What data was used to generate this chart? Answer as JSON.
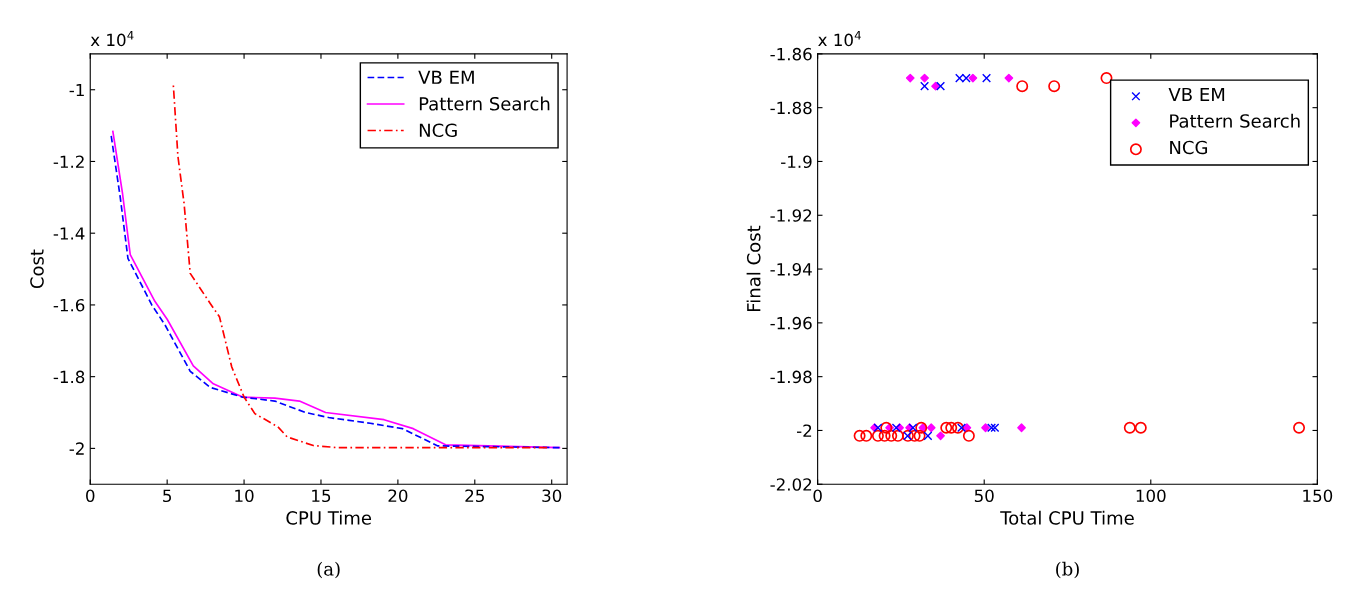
{
  "chart_data": [
    {
      "type": "line",
      "xlabel": "CPU Time",
      "ylabel": "Cost",
      "xlim": [
        0,
        31
      ],
      "ylim": [
        -2.1,
        -0.9
      ],
      "xticks": [
        0,
        5,
        10,
        15,
        20,
        25,
        30
      ],
      "yticks": [
        -2,
        -1.8,
        -1.6,
        -1.4,
        -1.2,
        -1
      ],
      "grid": false,
      "legend": "top right",
      "annotations": [
        "x 10$^{4}$",
        "(a)"
      ],
      "series": [
        {
          "name": "VB EM",
          "color": "#0000ff",
          "line_style": "dashed",
          "x": [
            1.35,
            1.95,
            2.45,
            4.0,
            4.85,
            6.5,
            7.8,
            9.9,
            12.0,
            14.0,
            15.5,
            18.2,
            20.3,
            22.6,
            30.5
          ],
          "values": [
            -1.125,
            -1.3,
            -1.47,
            -1.6,
            -1.655,
            -1.785,
            -1.83,
            -1.857,
            -1.868,
            -1.9,
            -1.914,
            -1.93,
            -1.945,
            -1.993,
            -1.998
          ]
        },
        {
          "name": "Pattern Search",
          "color": "#ff00ff",
          "line_style": "solid",
          "x": [
            1.47,
            2.1,
            2.6,
            4.2,
            5.0,
            6.7,
            8.0,
            9.9,
            12.0,
            13.6,
            15.3,
            19.1,
            21.0,
            23.1,
            30.5
          ],
          "values": [
            -1.116,
            -1.29,
            -1.46,
            -1.59,
            -1.64,
            -1.77,
            -1.82,
            -1.857,
            -1.86,
            -1.868,
            -1.9,
            -1.92,
            -1.945,
            -1.99,
            -1.998
          ]
        },
        {
          "name": "NCG",
          "color": "#ff0000",
          "line_style": "dashdot",
          "x": [
            5.4,
            5.7,
            6.1,
            6.5,
            7.8,
            8.4,
            9.2,
            10.0,
            10.7,
            12.2,
            12.8,
            14.5,
            16.1,
            29.7
          ],
          "values": [
            -0.986,
            -1.186,
            -1.317,
            -1.512,
            -1.596,
            -1.633,
            -1.773,
            -1.857,
            -1.903,
            -1.94,
            -1.968,
            -1.992,
            -1.998,
            -1.998
          ]
        }
      ]
    },
    {
      "type": "scatter",
      "xlabel": "Total CPU Time",
      "ylabel": "Final Cost",
      "xlim": [
        0,
        150
      ],
      "ylim": [
        -2.02,
        -1.86
      ],
      "xticks": [
        0,
        50,
        100,
        150
      ],
      "yticks": [
        -2.02,
        -2,
        -1.98,
        -1.96,
        -1.94,
        -1.92,
        -1.9,
        -1.88,
        -1.86
      ],
      "grid": false,
      "legend": "top right",
      "annotations": [
        "x 10$^{4}$",
        "(b)"
      ],
      "series": [
        {
          "name": "VB EM",
          "color": "#0000ff",
          "marker": "cross",
          "x": [
            32.1,
            36.9,
            42.6,
            44.6,
            50.7,
            18.1,
            23.6,
            28.6,
            43.2,
            52.2,
            53.2,
            27,
            33.1
          ],
          "values": [
            -1.872,
            -1.872,
            -1.869,
            -1.869,
            -1.869,
            -1.999,
            -1.999,
            -1.999,
            -1.999,
            -1.999,
            -1.999,
            -2.002,
            -2.002
          ]
        },
        {
          "name": "Pattern Search",
          "color": "#ff00ff",
          "marker": "diamond",
          "x": [
            27.8,
            32.1,
            35.4,
            46.6,
            57.4,
            17.1,
            21.6,
            24.6,
            27.6,
            31.6,
            34.1,
            44.8,
            50.4,
            61.2,
            36.9
          ],
          "values": [
            -1.869,
            -1.869,
            -1.872,
            -1.869,
            -1.869,
            -1.999,
            -1.999,
            -1.999,
            -1.999,
            -1.999,
            -1.999,
            -1.999,
            -1.999,
            -1.999,
            -2.002
          ]
        },
        {
          "name": "NCG",
          "color": "#ff0000",
          "marker": "circle",
          "x": [
            61.4,
            71,
            86.7,
            93.7,
            97,
            144.5,
            20.6,
            31.1,
            38.6,
            40.1,
            42.1,
            12.6,
            14.6,
            18.1,
            20.1,
            22.1,
            24.1,
            27.1,
            29.1,
            30.6,
            45.4
          ],
          "values": [
            -1.872,
            -1.872,
            -1.869,
            -1.999,
            -1.999,
            -1.999,
            -1.999,
            -1.999,
            -1.999,
            -1.999,
            -1.999,
            -2.002,
            -2.002,
            -2.002,
            -2.002,
            -2.002,
            -2.002,
            -2.002,
            -2.002,
            -2.002,
            -2.002
          ]
        }
      ]
    }
  ]
}
